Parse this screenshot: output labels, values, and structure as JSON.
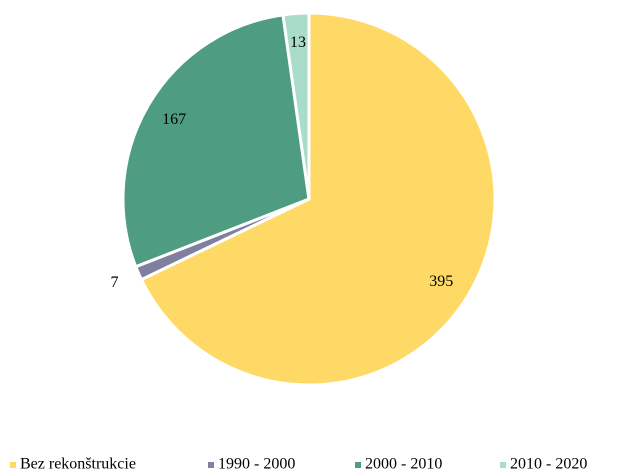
{
  "chart_data": {
    "type": "pie",
    "categories": [
      "Bez rekonštrukcie",
      "1990 - 2000",
      "2000 - 2010",
      "2010 - 2020"
    ],
    "values": [
      395,
      7,
      167,
      13
    ],
    "colors": [
      "#FFD966",
      "#7F7F9F",
      "#4E9C82",
      "#A9DCC9"
    ],
    "legend": "bottom"
  }
}
